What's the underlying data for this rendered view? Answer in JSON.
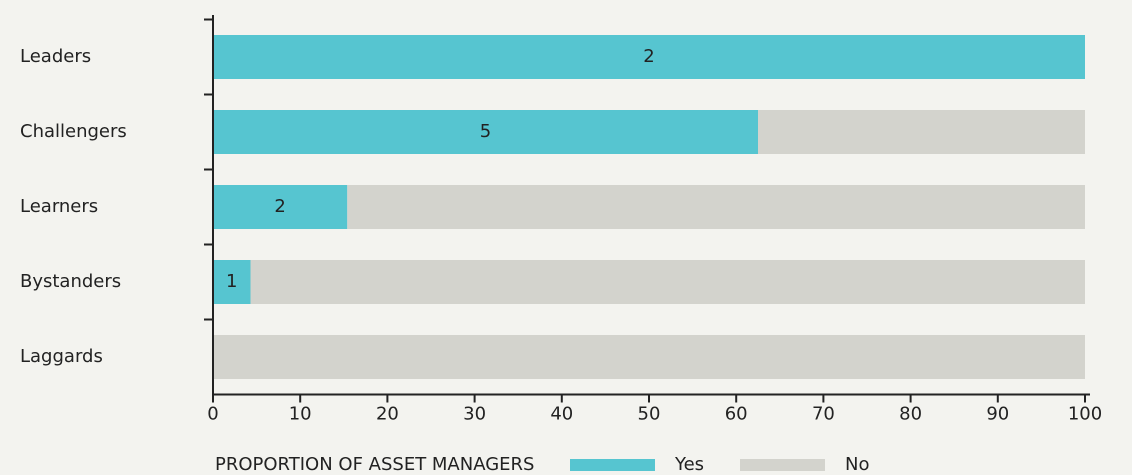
{
  "chart_data": {
    "type": "stacked_barh",
    "categories": [
      "Leaders",
      "Challengers",
      "Learners",
      "Bystanders",
      "Laggards"
    ],
    "series": [
      {
        "name": "Yes",
        "color": "#56c5d0",
        "values": [
          100,
          62.5,
          15.4,
          4.3,
          0
        ],
        "counts": [
          2,
          5,
          2,
          1,
          null
        ]
      },
      {
        "name": "No",
        "color": "#d3d3cd",
        "values": [
          0,
          37.5,
          84.6,
          95.7,
          100
        ]
      }
    ],
    "legend_title": "PROPORTION OF ASSET MANAGERS",
    "xlim": [
      0,
      100
    ],
    "xticks": [
      0,
      10,
      20,
      30,
      40,
      50,
      60,
      70,
      80,
      90,
      100
    ]
  }
}
